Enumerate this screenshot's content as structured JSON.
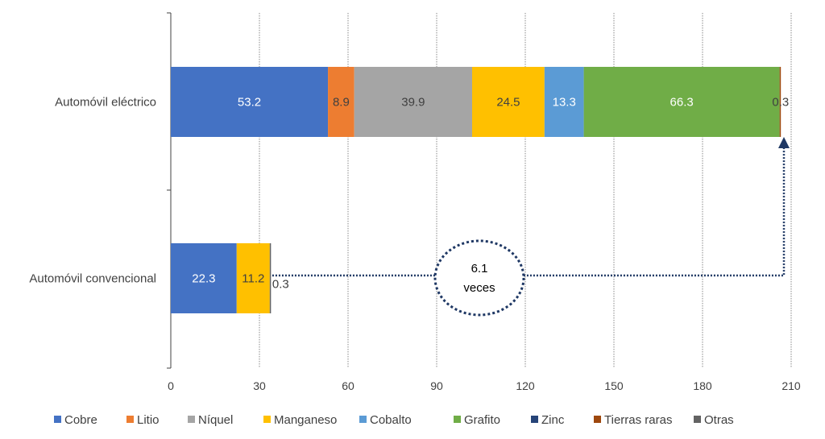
{
  "chart_data": {
    "type": "bar",
    "orientation": "horizontal",
    "stacked": true,
    "categories": [
      "Automóvil eléctrico",
      "Automóvil convencional"
    ],
    "series": [
      {
        "name": "Cobre",
        "color": "#4472C4",
        "values": [
          53.2,
          22.3
        ]
      },
      {
        "name": "Litio",
        "color": "#ED7D31",
        "values": [
          8.9,
          0
        ]
      },
      {
        "name": "Níquel",
        "color": "#A5A5A5",
        "values": [
          39.9,
          0
        ]
      },
      {
        "name": "Manganeso",
        "color": "#FFC000",
        "values": [
          24.5,
          11.2
        ]
      },
      {
        "name": "Cobalto",
        "color": "#5B9BD5",
        "values": [
          13.3,
          0
        ]
      },
      {
        "name": "Grafito",
        "color": "#70AD47",
        "values": [
          66.3,
          0
        ]
      },
      {
        "name": "Zinc",
        "color": "#264478",
        "values": [
          0,
          0
        ]
      },
      {
        "name": "Tierras raras",
        "color": "#9E480E",
        "values": [
          0.3,
          0
        ]
      },
      {
        "name": "Otras",
        "color": "#636363",
        "values": [
          0,
          0.3
        ]
      }
    ],
    "xlim": [
      0,
      210
    ],
    "xticks": [
      0,
      30,
      60,
      90,
      120,
      150,
      180,
      210
    ],
    "grid": "vertical dotted",
    "legend": "bottom",
    "annotation": {
      "line1": "6.1",
      "line2": "veces",
      "color": "#1F3864"
    }
  }
}
